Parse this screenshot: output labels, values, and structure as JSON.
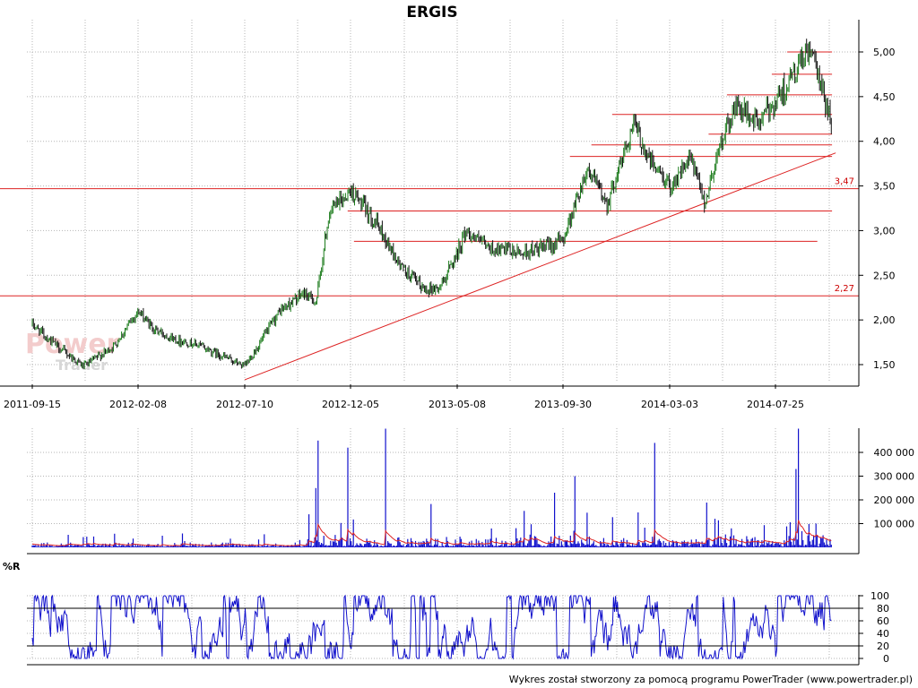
{
  "title": "ERGIS",
  "footer": "Wykres został stworzony za pomocą programu PowerTrader (www.powertrader.pl)",
  "watermark": {
    "line1": "Power",
    "line2": "Trader"
  },
  "chart_data": [
    {
      "type": "line",
      "role": "price",
      "title": "ERGIS",
      "x_tick_labels": [
        "2011-09-15",
        "2012-02-08",
        "2012-07-10",
        "2012-12-05",
        "2013-05-08",
        "2013-09-30",
        "2014-03-03",
        "2014-07-25"
      ],
      "y_tick_labels": [
        "1,50",
        "2,00",
        "2,50",
        "3,00",
        "3,50",
        "4,00",
        "4,50",
        "5,00"
      ],
      "ylim": [
        1.3,
        5.1
      ],
      "grid": true,
      "series": [
        {
          "x": [
            "2011-09-15",
            "2011-10-20",
            "2011-11-25",
            "2012-01-05",
            "2012-02-08",
            "2012-03-01",
            "2012-04-02",
            "2012-05-04",
            "2012-06-01",
            "2012-07-10",
            "2012-08-01",
            "2012-08-28",
            "2012-10-01",
            "2012-10-18",
            "2012-11-05",
            "2012-12-05",
            "2013-01-10",
            "2013-02-15",
            "2013-03-20",
            "2013-04-12",
            "2013-05-08",
            "2013-05-20",
            "2013-06-20",
            "2013-08-01",
            "2013-09-02",
            "2013-09-30",
            "2013-11-04",
            "2013-12-03",
            "2014-01-10",
            "2014-02-01",
            "2014-03-03",
            "2014-04-01",
            "2014-04-20",
            "2014-05-08",
            "2014-06-01",
            "2014-07-01",
            "2014-07-25",
            "2014-08-20",
            "2014-09-10",
            "2014-09-25",
            "2014-10-10"
          ],
          "values": [
            1.95,
            1.7,
            1.48,
            1.7,
            2.1,
            1.9,
            1.78,
            1.72,
            1.62,
            1.48,
            1.75,
            2.1,
            2.3,
            2.2,
            3.2,
            3.45,
            3.1,
            2.6,
            2.35,
            2.35,
            2.75,
            3.0,
            2.8,
            2.75,
            2.8,
            2.9,
            3.7,
            3.3,
            4.2,
            3.8,
            3.5,
            3.8,
            3.3,
            3.9,
            4.4,
            4.2,
            4.45,
            4.75,
            5.05,
            4.6,
            4.2
          ]
        }
      ],
      "annotations": [
        {
          "type": "level",
          "value": 3.47,
          "label": "3,47"
        },
        {
          "type": "level",
          "value": 2.27,
          "label": "2,27"
        },
        {
          "type": "hline",
          "value": 3.22,
          "from": "2012-12-01",
          "to": "2014-10-10"
        },
        {
          "type": "hline",
          "value": 2.88,
          "from": "2012-12-10",
          "to": "2014-09-20"
        },
        {
          "type": "hline",
          "value": 3.83,
          "from": "2013-10-10",
          "to": "2014-10-10"
        },
        {
          "type": "hline",
          "value": 3.96,
          "from": "2013-11-10",
          "to": "2014-10-10"
        },
        {
          "type": "hline",
          "value": 4.3,
          "from": "2013-12-10",
          "to": "2014-10-10"
        },
        {
          "type": "hline",
          "value": 4.08,
          "from": "2014-04-25",
          "to": "2014-10-10"
        },
        {
          "type": "hline",
          "value": 4.52,
          "from": "2014-05-20",
          "to": "2014-10-10"
        },
        {
          "type": "hline",
          "value": 4.75,
          "from": "2014-07-20",
          "to": "2014-10-10"
        },
        {
          "type": "hline",
          "value": 5.0,
          "from": "2014-08-10",
          "to": "2014-10-10"
        },
        {
          "type": "trendline",
          "from": [
            "2012-07-10",
            1.33
          ],
          "to": [
            "2014-10-15",
            3.87
          ]
        }
      ]
    },
    {
      "type": "bar",
      "role": "volume",
      "y_tick_labels": [
        "100 000",
        "200 000",
        "300 000",
        "400 000"
      ],
      "ylim": [
        0,
        500000
      ],
      "grid": true,
      "spikes": [
        {
          "x": "2012-10-20",
          "value": 450000
        },
        {
          "x": "2012-10-18",
          "value": 250000
        },
        {
          "x": "2012-12-01",
          "value": 420000
        },
        {
          "x": "2013-01-25",
          "value": 500000
        },
        {
          "x": "2013-09-18",
          "value": 230000
        },
        {
          "x": "2013-10-18",
          "value": 300000
        },
        {
          "x": "2014-02-10",
          "value": 440000
        },
        {
          "x": "2014-08-25",
          "value": 500000
        },
        {
          "x": "2014-08-22",
          "value": 330000
        }
      ]
    },
    {
      "type": "line",
      "role": "oscillator",
      "title": "%R",
      "y_tick_labels": [
        "0",
        "20",
        "40",
        "60",
        "80",
        "100"
      ],
      "ylim": [
        0,
        100
      ],
      "reference_lines": [
        20,
        80
      ],
      "grid": true
    }
  ]
}
